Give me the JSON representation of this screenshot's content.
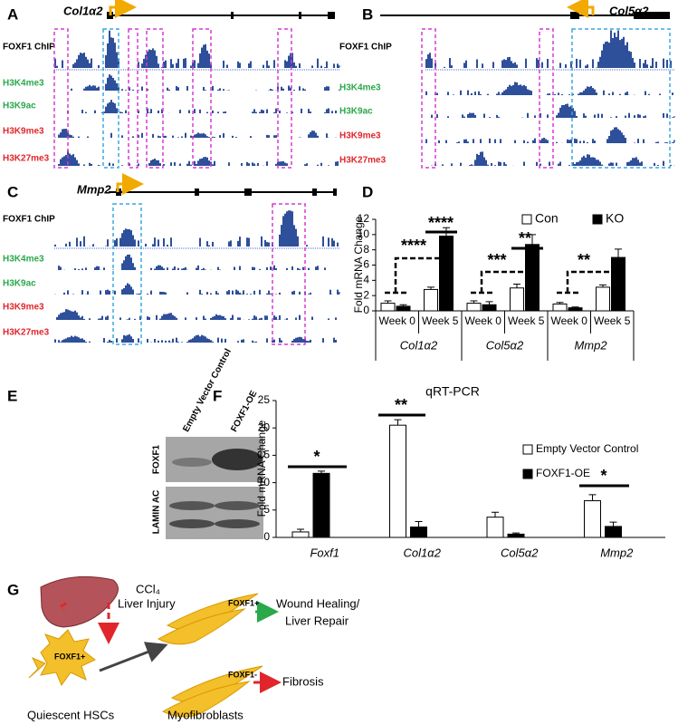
{
  "panels": {
    "A": {
      "label": "A",
      "gene": "Col1α2",
      "tracks": [
        "FOXF1 ChIP",
        "H3K4me3",
        "H3K9ac",
        "H3K9me3",
        "H3K27me3"
      ]
    },
    "B": {
      "label": "B",
      "gene": "Col5α2",
      "tracks": [
        "FOXF1 ChIP",
        "H3K4me3",
        "H3K9ac",
        "H3K9me3",
        "H3K27me3"
      ]
    },
    "C": {
      "label": "C",
      "gene": "Mmp2",
      "tracks": [
        "FOXF1 ChIP",
        "H3K4me3",
        "H3K9ac",
        "H3K9me3",
        "H3K27me3"
      ]
    },
    "D": {
      "label": "D"
    },
    "E": {
      "label": "E",
      "lanes": [
        "Empty Vector Control",
        "FOXF1-OE"
      ],
      "blots": [
        "FOXF1",
        "LAMIN AC"
      ]
    },
    "F": {
      "label": "F"
    },
    "G": {
      "label": "G",
      "injury": "CCl₄",
      "injury_sub": "Liver Injury",
      "hsc_marker": "FOXF1+",
      "myo_pos": "FOXF1+",
      "myo_neg": "FOXF1-",
      "outcome_pos_1": "Wound Healing/",
      "outcome_pos_2": "Liver Repair",
      "outcome_neg": "Fibrosis",
      "hsc_label": "Quiescent HSCs",
      "myo_label": "Myofibroblasts"
    }
  },
  "chart_data": [
    {
      "type": "bar",
      "y_label": "Fold mRNA Change",
      "groups": [
        "Col1α2",
        "Col5α2",
        "Mmp2"
      ],
      "categories": [
        "Week 0",
        "Week 5",
        "Week 0",
        "Week 5",
        "Week 0",
        "Week 5"
      ],
      "series": [
        {
          "name": "Con",
          "color": "#ffffff",
          "values": [
            1.0,
            2.8,
            1.0,
            3.0,
            0.9,
            3.1
          ],
          "errors": [
            0.3,
            0.3,
            0.3,
            0.5,
            0.2,
            0.3
          ]
        },
        {
          "name": "KO",
          "color": "#000000",
          "values": [
            0.6,
            9.8,
            0.8,
            8.7,
            0.4,
            7.0
          ],
          "errors": [
            0.2,
            1.1,
            0.4,
            1.3,
            0.1,
            1.1
          ]
        }
      ],
      "ylim": [
        0,
        12
      ],
      "yticks": [
        0,
        2,
        4,
        6,
        8,
        10,
        12
      ],
      "annotations": [
        "****",
        "****",
        "***",
        "**",
        "**"
      ]
    },
    {
      "type": "bar",
      "title": "qRT-PCR",
      "y_label": "Fold mRNA Change",
      "categories": [
        "Foxf1",
        "Col1α2",
        "Col5α2",
        "Mmp2"
      ],
      "series": [
        {
          "name": "Empty Vector Control",
          "color": "#ffffff",
          "values": [
            1.0,
            20.5,
            3.7,
            6.7
          ],
          "errors": [
            0.5,
            1.0,
            0.9,
            1.1
          ]
        },
        {
          "name": "FOXF1-OE",
          "color": "#000000",
          "values": [
            11.7,
            1.9,
            0.6,
            2.0
          ],
          "errors": [
            0.4,
            1.0,
            0.2,
            0.8
          ]
        }
      ],
      "ylim": [
        0,
        25
      ],
      "yticks": [
        0,
        5,
        10,
        15,
        20,
        25
      ],
      "annotations": [
        "*",
        "**",
        "*"
      ]
    }
  ]
}
